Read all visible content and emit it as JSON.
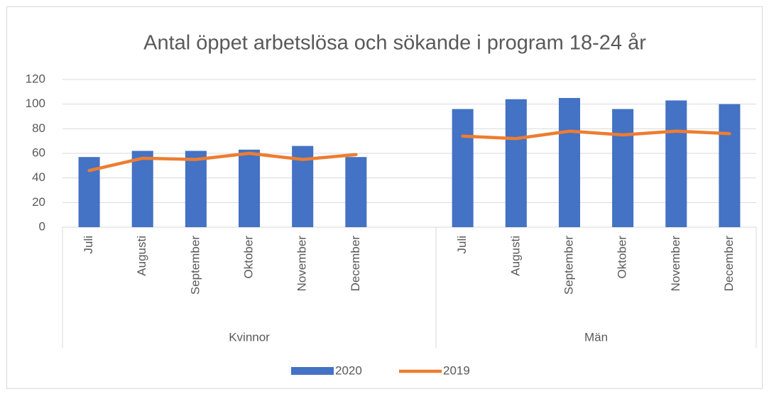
{
  "chart_data": {
    "type": "bar-line",
    "title": "Antal öppet arbetslösa och sökande i program 18-24 år",
    "groups": [
      {
        "name": "Kvinnor",
        "categories": [
          "Juli",
          "Augusti",
          "September",
          "Oktober",
          "November",
          "December",
          null
        ]
      },
      {
        "name": "Män",
        "categories": [
          "Juli",
          "Augusti",
          "September",
          "Oktober",
          "November",
          "December"
        ]
      }
    ],
    "series": [
      {
        "name": "2020",
        "type": "bar",
        "color": "#4472c4",
        "values": [
          57,
          62,
          62,
          63,
          66,
          57,
          null,
          96,
          104,
          105,
          96,
          103,
          100
        ]
      },
      {
        "name": "2019",
        "type": "line",
        "color": "#ed7d31",
        "values": [
          46,
          56,
          55,
          60,
          55,
          59,
          null,
          74,
          72,
          78,
          75,
          78,
          76
        ]
      }
    ],
    "ylim": [
      0,
      120
    ],
    "yticks": [
      0,
      20,
      40,
      60,
      80,
      100,
      120
    ],
    "grid": true,
    "legend": "bottom"
  }
}
